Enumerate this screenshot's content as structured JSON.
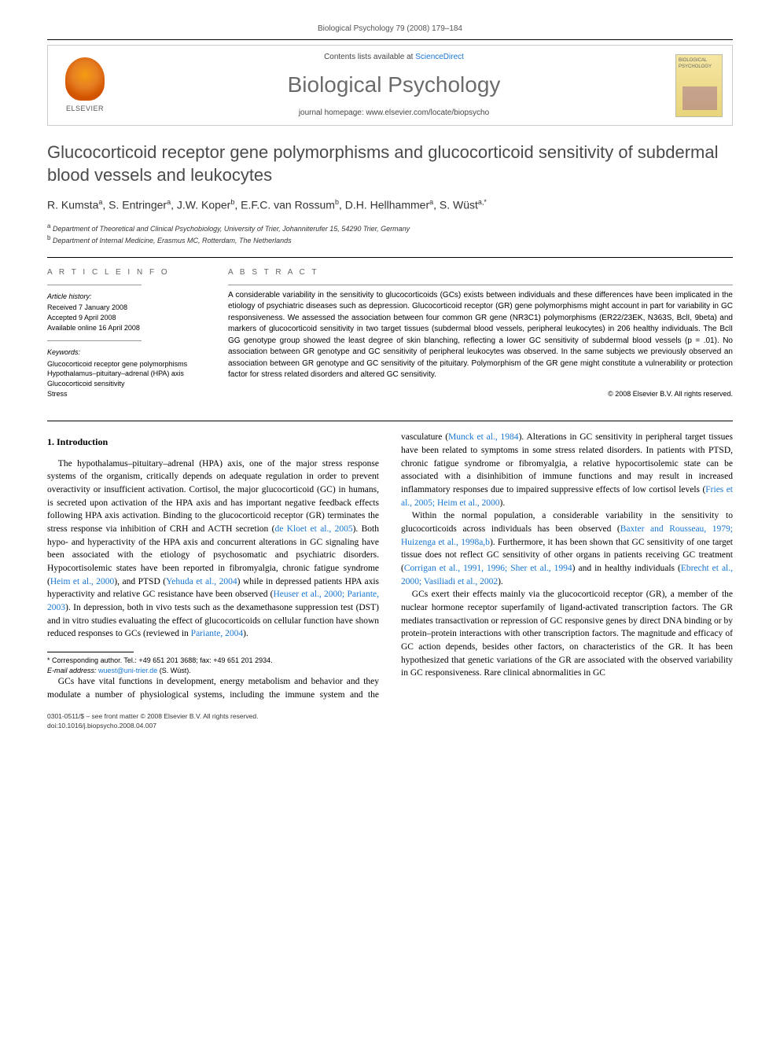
{
  "running_head": "Biological Psychology 79 (2008) 179–184",
  "header": {
    "elsevier": "ELSEVIER",
    "contents_prefix": "Contents lists available at ",
    "contents_link": "ScienceDirect",
    "journal": "Biological Psychology",
    "homepage_prefix": "journal homepage: ",
    "homepage_url": "www.elsevier.com/locate/biopsycho",
    "cover_label": "BIOLOGICAL PSYCHOLOGY"
  },
  "title": "Glucocorticoid receptor gene polymorphisms and glucocorticoid sensitivity of subdermal blood vessels and leukocytes",
  "authors_html": "R. Kumsta<sup>a</sup>, S. Entringer<sup>a</sup>, J.W. Koper<sup>b</sup>, E.F.C. van Rossum<sup>b</sup>, D.H. Hellhammer<sup>a</sup>, S. Wüst<sup>a,*</sup>",
  "affiliations": {
    "a": "Department of Theoretical and Clinical Psychobiology, University of Trier, Johanniterufer 15, 54290 Trier, Germany",
    "b": "Department of Internal Medicine, Erasmus MC, Rotterdam, The Netherlands"
  },
  "article_info": {
    "heading": "A R T I C L E   I N F O",
    "history_label": "Article history:",
    "history": [
      "Received 7 January 2008",
      "Accepted 9 April 2008",
      "Available online 16 April 2008"
    ],
    "keywords_label": "Keywords:",
    "keywords": [
      "Glucocorticoid receptor gene polymorphisms",
      "Hypothalamus–pituitary–adrenal (HPA) axis",
      "Glucocorticoid sensitivity",
      "Stress"
    ]
  },
  "abstract": {
    "heading": "A B S T R A C T",
    "body": "A considerable variability in the sensitivity to glucocorticoids (GCs) exists between individuals and these differences have been implicated in the etiology of psychiatric diseases such as depression. Glucocorticoid receptor (GR) gene polymorphisms might account in part for variability in GC responsiveness. We assessed the association between four common GR gene (NR3C1) polymorphisms (ER22/23EK, N363S, BclI, 9beta) and markers of glucocorticoid sensitivity in two target tissues (subdermal blood vessels, peripheral leukocytes) in 206 healthy individuals. The BclI GG genotype group showed the least degree of skin blanching, reflecting a lower GC sensitivity of subdermal blood vessels (p = .01). No association between GR genotype and GC sensitivity of peripheral leukocytes was observed. In the same subjects we previously observed an association between GR genotype and GC sensitivity of the pituitary. Polymorphism of the GR gene might constitute a vulnerability or protection factor for stress related disorders and altered GC sensitivity.",
    "copyright": "© 2008 Elsevier B.V. All rights reserved."
  },
  "sections": {
    "intro_heading": "1. Introduction",
    "col1_p1": "The hypothalamus–pituitary–adrenal (HPA) axis, one of the major stress response systems of the organism, critically depends on adequate regulation in order to prevent overactivity or insufficient activation. Cortisol, the major glucocorticoid (GC) in humans, is secreted upon activation of the HPA axis and has important negative feedback effects following HPA axis activation. Binding to the glucocorticoid receptor (GR) terminates the stress response via inhibition of CRH and ACTH secretion (",
    "cite1": "de Kloet et al., 2005",
    "col1_p1b": "). Both hypo- and hyperactivity of the HPA axis and concurrent alterations in GC signaling have been associated with the etiology of psychosomatic and psychiatric disorders. Hypocortisolemic states have been reported in fibromyalgia, chronic fatigue syndrome (",
    "cite2": "Heim et al., 2000",
    "col1_p1c": "), and PTSD (",
    "cite3": "Yehuda et al., 2004",
    "col1_p1d": ") while in depressed patients HPA axis hyperactivity and relative GC resistance have been observed (",
    "cite4": "Heuser et al., 2000; Pariante, 2003",
    "col1_p1e": "). In depression, both in vivo tests such as the dexamethasone suppression test (DST) and in vitro studies evaluating the effect of glucocorticoids on cellular function have shown reduced responses to GCs (reviewed in ",
    "cite5": "Pariante, 2004",
    "col1_p1f": ").",
    "col2_p1": "GCs have vital functions in development, energy metabolism and behavior and they modulate a number of physiological systems, including the immune system and the vasculature (",
    "cite6": "Munck et al., 1984",
    "col2_p1b": "). Alterations in GC sensitivity in peripheral target tissues have been related to symptoms in some stress related disorders. In patients with PTSD, chronic fatigue syndrome or fibromyalgia, a relative hypocortisolemic state can be associated with a disinhibition of immune functions and may result in increased inflammatory responses due to impaired suppressive effects of low cortisol levels (",
    "cite7": "Fries et al., 2005; Heim et al., 2000",
    "col2_p1c": ").",
    "col2_p2": "Within the normal population, a considerable variability in the sensitivity to glucocorticoids across individuals has been observed (",
    "cite8": "Baxter and Rousseau, 1979; Huizenga et al., 1998a,b",
    "col2_p2b": "). Furthermore, it has been shown that GC sensitivity of one target tissue does not reflect GC sensitivity of other organs in patients receiving GC treatment (",
    "cite9": "Corrigan et al., 1991, 1996; Sher et al., 1994",
    "col2_p2c": ") and in healthy individuals (",
    "cite10": "Ebrecht et al., 2000; Vasiliadi et al., 2002",
    "col2_p2d": ").",
    "col2_p3": "GCs exert their effects mainly via the glucocorticoid receptor (GR), a member of the nuclear hormone receptor superfamily of ligand-activated transcription factors. The GR mediates transactivation or repression of GC responsive genes by direct DNA binding or by protein–protein interactions with other transcription factors. The magnitude and efficacy of GC action depends, besides other factors, on characteristics of the GR. It has been hypothesized that genetic variations of the GR are associated with the observed variability in GC responsiveness. Rare clinical abnormalities in GC"
  },
  "footnote": {
    "marker": "*",
    "line1": "Corresponding author. Tel.: +49 651 201 3688; fax: +49 651 201 2934.",
    "line2_label": "E-mail address:",
    "line2_email": "wuest@uni-trier.de",
    "line2_tail": "(S. Wüst)."
  },
  "footer": {
    "line1": "0301-0511/$ – see front matter © 2008 Elsevier B.V. All rights reserved.",
    "line2": "doi:10.1016/j.biopsycho.2008.04.007"
  },
  "colors": {
    "link": "#1976d2",
    "title_gray": "#4a4a4a",
    "heading_gray": "#666666"
  }
}
